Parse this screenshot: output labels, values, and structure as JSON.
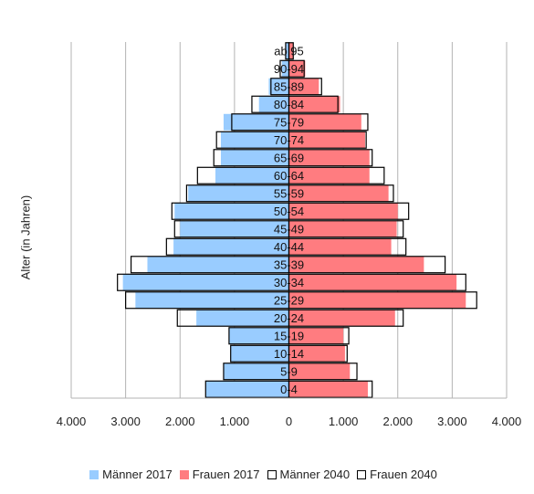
{
  "chart_data": {
    "type": "bar",
    "orientation": "horizontal",
    "ylabel": "Alter (in Jahren)",
    "xlim": [
      -4000,
      4000
    ],
    "x_ticks": [
      -4000,
      -3000,
      -2000,
      -1000,
      0,
      1000,
      2000,
      3000,
      4000
    ],
    "x_tick_labels": [
      "4.000",
      "3.000",
      "2.000",
      "1.000",
      "0",
      "1.000",
      "2.000",
      "3.000",
      "4.000"
    ],
    "grid": "vertical",
    "legend_position": "bottom",
    "categories": [
      "0-4",
      "5-9",
      "10-14",
      "15-19",
      "20-24",
      "25-29",
      "30-34",
      "35-39",
      "40-44",
      "45-49",
      "50-54",
      "55-59",
      "60-64",
      "65-69",
      "70-74",
      "75-79",
      "80-84",
      "85-89",
      "90-94",
      "ab 95"
    ],
    "series": [
      {
        "name": "Männer 2017",
        "side": "left",
        "style": "filled",
        "color": "#99ccff",
        "values": [
          1530,
          1200,
          1070,
          1100,
          1700,
          2820,
          3050,
          2600,
          2120,
          2000,
          2100,
          1850,
          1350,
          1250,
          1250,
          1200,
          550,
          370,
          130,
          50
        ]
      },
      {
        "name": "Frauen 2017",
        "side": "right",
        "style": "filled",
        "color": "#ff7c80",
        "values": [
          1450,
          1120,
          1030,
          1000,
          1950,
          3250,
          3080,
          2480,
          1880,
          1980,
          2000,
          1830,
          1480,
          1480,
          1400,
          1330,
          940,
          550,
          300,
          80
        ]
      },
      {
        "name": "Männer 2040",
        "side": "left",
        "style": "outline",
        "color": "#000000",
        "values": [
          1530,
          1200,
          1070,
          1100,
          2050,
          3000,
          3150,
          2900,
          2250,
          2100,
          2150,
          1880,
          1680,
          1380,
          1330,
          1050,
          680,
          330,
          160,
          60
        ]
      },
      {
        "name": "Frauen 2040",
        "side": "right",
        "style": "outline",
        "color": "#000000",
        "values": [
          1530,
          1250,
          1070,
          1100,
          2100,
          3450,
          3250,
          2870,
          2150,
          2100,
          2200,
          1920,
          1750,
          1530,
          1420,
          1450,
          900,
          600,
          280,
          80
        ]
      }
    ]
  }
}
